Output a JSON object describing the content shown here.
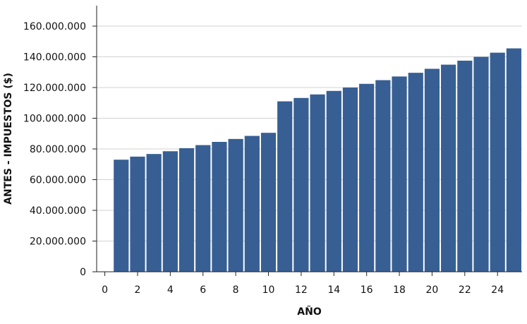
{
  "chart_data": {
    "type": "bar",
    "xlabel": "AÑO",
    "ylabel": "ANTES - IMPUESTOS ($)",
    "x": [
      1,
      2,
      3,
      4,
      5,
      6,
      7,
      8,
      9,
      10,
      11,
      12,
      13,
      14,
      15,
      16,
      17,
      18,
      19,
      20,
      21,
      22,
      23,
      24,
      25
    ],
    "values": [
      73000000,
      75000000,
      76700000,
      78500000,
      80500000,
      82500000,
      84600000,
      86500000,
      88500000,
      90500000,
      111000000,
      113200000,
      115500000,
      117800000,
      120000000,
      122400000,
      124800000,
      127200000,
      129600000,
      132200000,
      134900000,
      137500000,
      140000000,
      142700000,
      145500000
    ],
    "xlim": [
      -0.5,
      25.5
    ],
    "ylim": [
      0,
      160000000
    ],
    "x_ticks": [
      0,
      2,
      4,
      6,
      8,
      10,
      12,
      14,
      16,
      18,
      20,
      22,
      24
    ],
    "y_ticks": [
      0,
      20000000,
      40000000,
      60000000,
      80000000,
      100000000,
      120000000,
      140000000,
      160000000
    ],
    "y_tick_labels": [
      "0",
      "20.000.000",
      "40.000.000",
      "60.000.000",
      "80.000.000",
      "100.000.000",
      "120.000.000",
      "140.000.000",
      "160.000.000"
    ],
    "grid": "horizontal",
    "colors": {
      "bar": "#375f93",
      "grid": "#d3d3d3",
      "axis": "#222222"
    }
  }
}
